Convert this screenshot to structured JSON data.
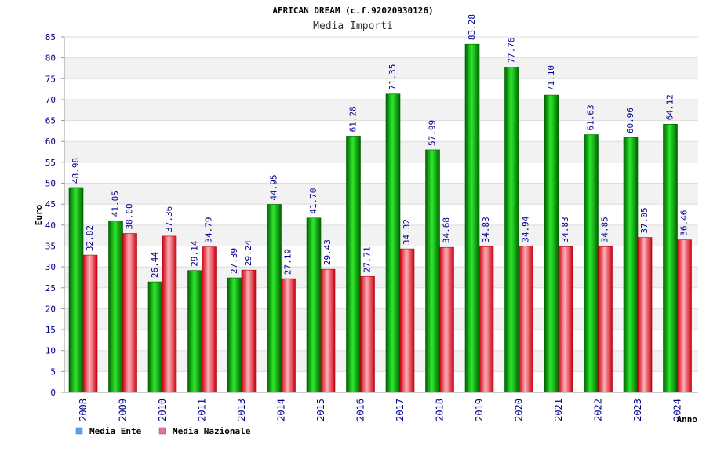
{
  "colors": {
    "ente_dark": "#006400",
    "ente_light": "#2ee82e",
    "naz_dark": "#cc0010",
    "naz_light": "#ffb0b8",
    "legend_ente": "#5aa0f0",
    "legend_naz": "#e070a0",
    "band": "#f2f2f2",
    "axis_text": "#00008b"
  },
  "chart_data": {
    "type": "bar",
    "title": "AFRICAN DREAM (c.f.92020930126)",
    "subtitle": "Media Importi",
    "xlabel": "Anno",
    "ylabel": "Euro",
    "ylim": [
      0,
      85
    ],
    "ytick_step": 5,
    "grid": true,
    "legend_position": "bottom-left",
    "categories": [
      "2008",
      "2009",
      "2010",
      "2011",
      "2013",
      "2014",
      "2015",
      "2016",
      "2017",
      "2018",
      "2019",
      "2020",
      "2021",
      "2022",
      "2023",
      "2024"
    ],
    "series": [
      {
        "name": "Media Ente",
        "values": [
          48.98,
          41.05,
          26.44,
          29.14,
          27.39,
          44.95,
          41.7,
          61.28,
          71.35,
          57.99,
          83.28,
          77.76,
          71.1,
          61.63,
          60.96,
          64.12
        ],
        "labels": [
          "48.98",
          "41.05",
          "26.44",
          "29.14",
          "27.39",
          "44.95",
          "41.70",
          "61.28",
          "71.35",
          "57.99",
          "83.28",
          "77.76",
          "71.10",
          "61.63",
          "60.96",
          "64.12"
        ]
      },
      {
        "name": "Media Nazionale",
        "values": [
          32.82,
          38.0,
          37.36,
          34.79,
          29.24,
          27.19,
          29.43,
          27.71,
          34.32,
          34.68,
          34.83,
          34.94,
          34.83,
          34.85,
          37.05,
          36.46
        ],
        "labels": [
          "32.82",
          "38.00",
          "37.36",
          "34.79",
          "29.24",
          "27.19",
          "29.43",
          "27.71",
          "34.32",
          "34.68",
          "34.83",
          "34.94",
          "34.83",
          "34.85",
          "37.05",
          "36.46"
        ]
      }
    ]
  }
}
